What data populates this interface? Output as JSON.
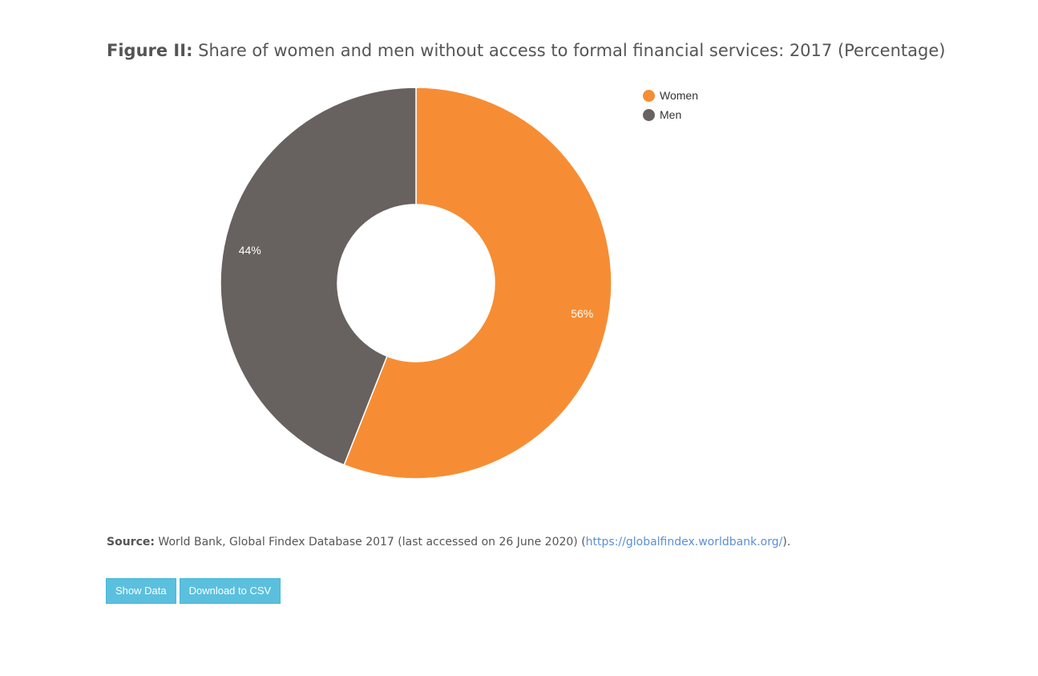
{
  "figure": {
    "title_prefix": "Figure II:",
    "title_text": "Share of women and men without access to formal financial services: 2017 (Percentage)"
  },
  "chart_data": {
    "type": "pie",
    "donut": true,
    "title": "Figure II: Share of women and men without access to formal financial services: 2017 (Percentage)",
    "legend_position": "top-right",
    "slices": [
      {
        "name": "Women",
        "value": 56,
        "label": "56%",
        "color": "#f68d34"
      },
      {
        "name": "Men",
        "value": 44,
        "label": "44%",
        "color": "#67625f"
      }
    ]
  },
  "legend": {
    "items": [
      {
        "label": "Women",
        "color": "#f68d34"
      },
      {
        "label": "Men",
        "color": "#67625f"
      }
    ]
  },
  "source": {
    "label": "Source:",
    "text": " World Bank, Global Findex Database 2017 (last accessed on 26 June 2020) (",
    "link_text": "https://globalfindex.worldbank.org/",
    "suffix": ")."
  },
  "buttons": {
    "show_data": "Show Data",
    "download_csv": "Download to CSV"
  },
  "colors": {
    "button_bg": "#5bc0de",
    "link": "#5b8fd6"
  }
}
